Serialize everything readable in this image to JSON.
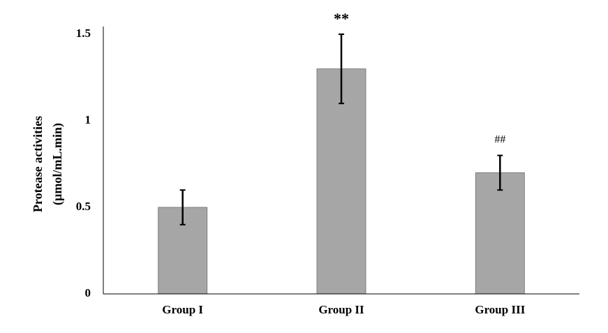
{
  "chart_data": {
    "type": "bar",
    "ylabel": [
      "Protease activities",
      "(µmol/mL.min)"
    ],
    "categories": [
      "Group I",
      "Group II",
      "Group III"
    ],
    "values": [
      0.5,
      1.3,
      0.7
    ],
    "errors": [
      0.1,
      0.2,
      0.1
    ],
    "color": "#a6a6a6",
    "ylim": [
      0,
      1.5
    ],
    "yticks": [
      0,
      0.5,
      1,
      1.5
    ],
    "grid": false,
    "annotations": [
      {
        "category": "Group II",
        "text": "**"
      },
      {
        "category": "Group III",
        "text": "##"
      }
    ]
  }
}
